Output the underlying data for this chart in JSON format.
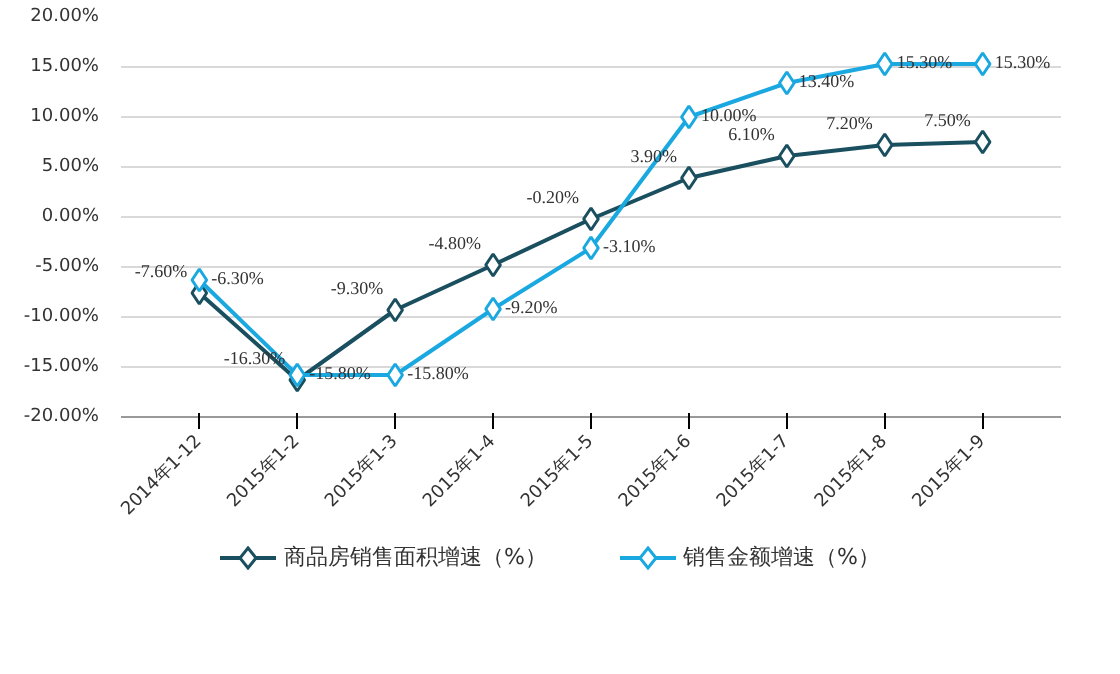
{
  "chart_data": {
    "type": "line",
    "categories": [
      "2014年1-12",
      "2015年1-2",
      "2015年1-3",
      "2015年1-4",
      "2015年1-5",
      "2015年1-6",
      "2015年1-7",
      "2015年1-8",
      "2015年1-9"
    ],
    "series": [
      {
        "name": "商品房销售面积增速（%）",
        "color": "#1a4f5f",
        "values": [
          -7.6,
          -16.3,
          -9.3,
          -4.8,
          -0.2,
          3.9,
          6.1,
          7.2,
          7.5
        ],
        "value_labels": [
          "-7.60%",
          "-16.30%",
          "-9.30%",
          "-4.80%",
          "-0.20%",
          "3.90%",
          "6.10%",
          "7.20%",
          "7.50%"
        ]
      },
      {
        "name": "销售金额增速（%）",
        "color": "#1aa8e0",
        "values": [
          -6.3,
          -15.8,
          -15.8,
          -9.2,
          -3.1,
          10.0,
          13.4,
          15.3,
          15.3
        ],
        "value_labels": [
          "-6.30%",
          "-15.80%",
          "-15.80%",
          "-9.20%",
          "-3.10%",
          "10.00%",
          "13.40%",
          "15.30%",
          "15.30%"
        ]
      }
    ],
    "ylim": [
      -20,
      20
    ],
    "yticks": [
      {
        "value": -20,
        "label": "-20.00%"
      },
      {
        "value": -15,
        "label": "-15.00%"
      },
      {
        "value": -10,
        "label": "-10.00%"
      },
      {
        "value": -5,
        "label": "-5.00%"
      },
      {
        "value": 0,
        "label": "0.00%"
      },
      {
        "value": 5,
        "label": "5.00%"
      },
      {
        "value": 10,
        "label": "10.00%"
      },
      {
        "value": 15,
        "label": "15.00%"
      },
      {
        "value": 20,
        "label": "20.00%"
      }
    ],
    "grid": "y",
    "legend": "bottom",
    "marker": "diamond",
    "line_style": "solid"
  }
}
